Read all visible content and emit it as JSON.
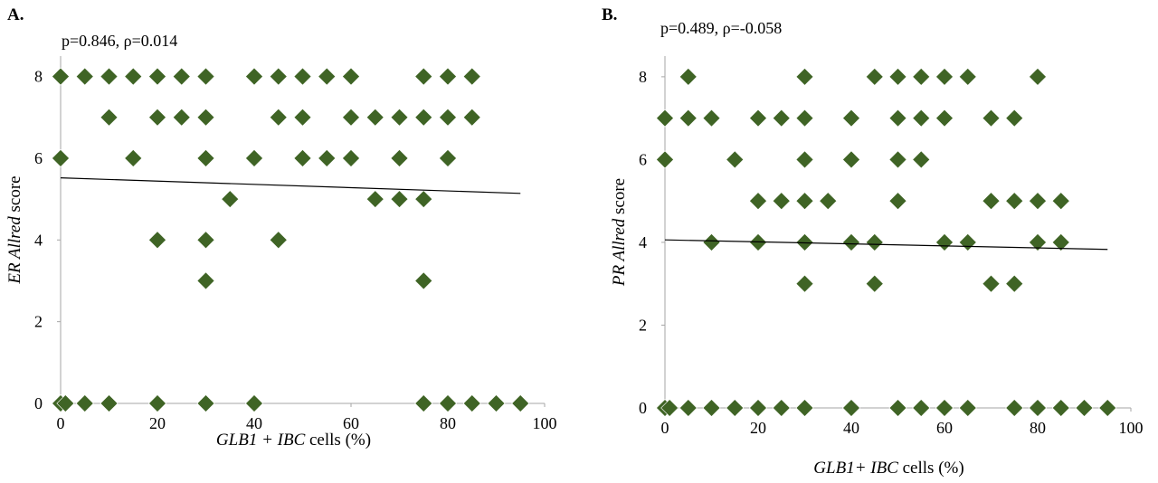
{
  "colors": {
    "marker": "#3f6425",
    "axis": "#a6a6a6",
    "trend": "#000000",
    "text": "#000000"
  },
  "chart_data": [
    {
      "type": "scatter",
      "panel_label": "A.",
      "annotation": "p=0.846, ρ=0.014",
      "title": "",
      "xlabel": {
        "parts": [
          {
            "text": "GLB1 + IBC",
            "italic": true
          },
          {
            "text": " cells (%)",
            "italic": false
          }
        ]
      },
      "ylabel": {
        "parts": [
          {
            "text": "ER Allred",
            "italic": true
          },
          {
            "text": " score",
            "italic": false
          }
        ]
      },
      "xlim": [
        0,
        100
      ],
      "ylim": [
        0,
        8.5
      ],
      "xticks": [
        0,
        20,
        40,
        60,
        80,
        100
      ],
      "yticks": [
        0,
        2,
        4,
        6,
        8
      ],
      "grid": false,
      "trendline": {
        "x": [
          0,
          95
        ],
        "y": [
          5.52,
          5.14
        ]
      },
      "points": [
        [
          0,
          8
        ],
        [
          5,
          8
        ],
        [
          10,
          8
        ],
        [
          15,
          8
        ],
        [
          20,
          8
        ],
        [
          25,
          8
        ],
        [
          30,
          8
        ],
        [
          40,
          8
        ],
        [
          45,
          8
        ],
        [
          50,
          8
        ],
        [
          55,
          8
        ],
        [
          60,
          8
        ],
        [
          75,
          8
        ],
        [
          80,
          8
        ],
        [
          85,
          8
        ],
        [
          10,
          7
        ],
        [
          20,
          7
        ],
        [
          25,
          7
        ],
        [
          30,
          7
        ],
        [
          45,
          7
        ],
        [
          50,
          7
        ],
        [
          60,
          7
        ],
        [
          65,
          7
        ],
        [
          70,
          7
        ],
        [
          75,
          7
        ],
        [
          80,
          7
        ],
        [
          85,
          7
        ],
        [
          0,
          6
        ],
        [
          15,
          6
        ],
        [
          30,
          6
        ],
        [
          40,
          6
        ],
        [
          50,
          6
        ],
        [
          55,
          6
        ],
        [
          60,
          6
        ],
        [
          70,
          6
        ],
        [
          80,
          6
        ],
        [
          35,
          5
        ],
        [
          65,
          5
        ],
        [
          70,
          5
        ],
        [
          75,
          5
        ],
        [
          20,
          4
        ],
        [
          30,
          4
        ],
        [
          45,
          4
        ],
        [
          30,
          3
        ],
        [
          75,
          3
        ],
        [
          0,
          0
        ],
        [
          1,
          0
        ],
        [
          5,
          0
        ],
        [
          10,
          0
        ],
        [
          20,
          0
        ],
        [
          30,
          0
        ],
        [
          40,
          0
        ],
        [
          75,
          0
        ],
        [
          80,
          0
        ],
        [
          85,
          0
        ],
        [
          90,
          0
        ],
        [
          95,
          0
        ]
      ]
    },
    {
      "type": "scatter",
      "panel_label": "B.",
      "annotation": "p=0.489, ρ=-0.058",
      "title": "",
      "xlabel": {
        "parts": [
          {
            "text": "GLB1+ IBC",
            "italic": true
          },
          {
            "text": " cells (%)",
            "italic": false
          }
        ]
      },
      "ylabel": {
        "parts": [
          {
            "text": "PR Allred",
            "italic": true
          },
          {
            "text": " score",
            "italic": false
          }
        ]
      },
      "xlim": [
        0,
        100
      ],
      "ylim": [
        0,
        8.5
      ],
      "xticks": [
        0,
        20,
        40,
        60,
        80,
        100
      ],
      "yticks": [
        0,
        2,
        4,
        6,
        8
      ],
      "grid": false,
      "trendline": {
        "x": [
          0,
          95
        ],
        "y": [
          4.06,
          3.83
        ]
      },
      "points": [
        [
          5,
          8
        ],
        [
          30,
          8
        ],
        [
          45,
          8
        ],
        [
          50,
          8
        ],
        [
          55,
          8
        ],
        [
          60,
          8
        ],
        [
          65,
          8
        ],
        [
          80,
          8
        ],
        [
          0,
          7
        ],
        [
          5,
          7
        ],
        [
          10,
          7
        ],
        [
          20,
          7
        ],
        [
          25,
          7
        ],
        [
          30,
          7
        ],
        [
          40,
          7
        ],
        [
          50,
          7
        ],
        [
          55,
          7
        ],
        [
          60,
          7
        ],
        [
          70,
          7
        ],
        [
          75,
          7
        ],
        [
          0,
          6
        ],
        [
          15,
          6
        ],
        [
          30,
          6
        ],
        [
          40,
          6
        ],
        [
          50,
          6
        ],
        [
          55,
          6
        ],
        [
          20,
          5
        ],
        [
          25,
          5
        ],
        [
          30,
          5
        ],
        [
          35,
          5
        ],
        [
          50,
          5
        ],
        [
          70,
          5
        ],
        [
          75,
          5
        ],
        [
          80,
          5
        ],
        [
          85,
          5
        ],
        [
          10,
          4
        ],
        [
          20,
          4
        ],
        [
          30,
          4
        ],
        [
          40,
          4
        ],
        [
          45,
          4
        ],
        [
          60,
          4
        ],
        [
          65,
          4
        ],
        [
          80,
          4
        ],
        [
          85,
          4
        ],
        [
          30,
          3
        ],
        [
          45,
          3
        ],
        [
          70,
          3
        ],
        [
          75,
          3
        ],
        [
          0,
          0
        ],
        [
          1,
          0
        ],
        [
          5,
          0
        ],
        [
          10,
          0
        ],
        [
          15,
          0
        ],
        [
          20,
          0
        ],
        [
          25,
          0
        ],
        [
          30,
          0
        ],
        [
          40,
          0
        ],
        [
          50,
          0
        ],
        [
          55,
          0
        ],
        [
          60,
          0
        ],
        [
          65,
          0
        ],
        [
          75,
          0
        ],
        [
          80,
          0
        ],
        [
          85,
          0
        ],
        [
          90,
          0
        ],
        [
          95,
          0
        ]
      ]
    }
  ]
}
